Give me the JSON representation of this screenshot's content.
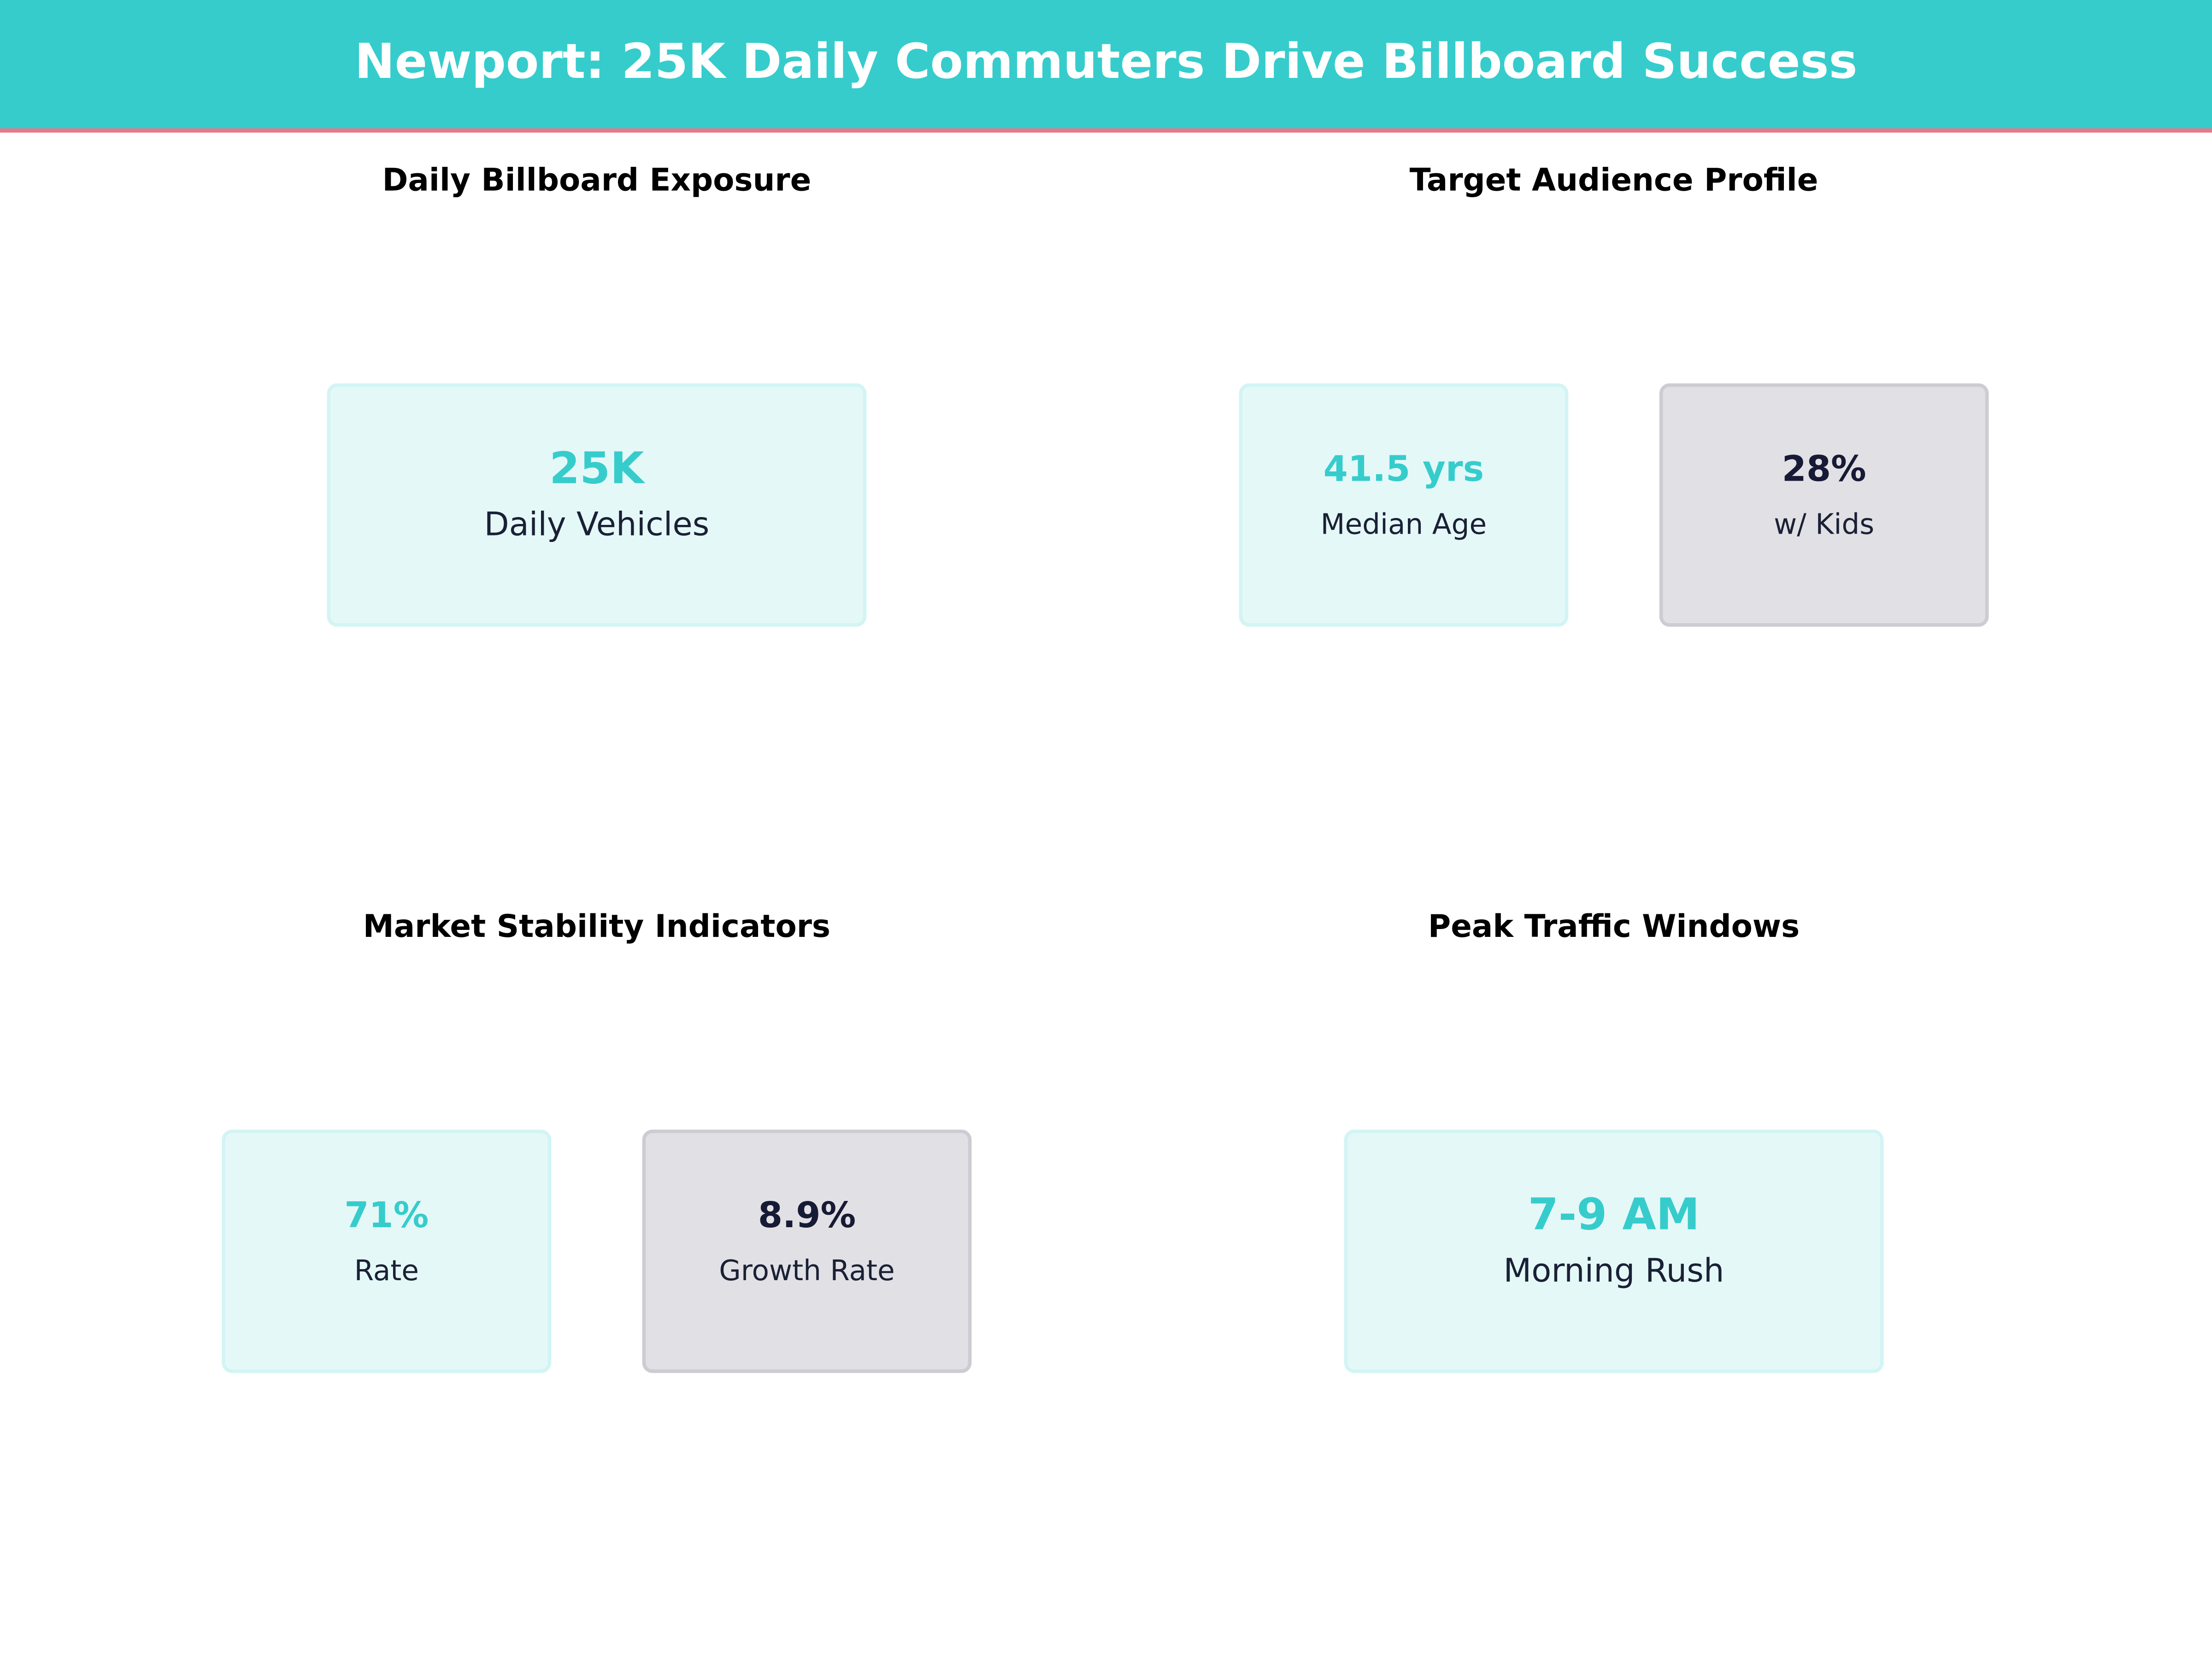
{
  "header": {
    "title": "Newport: 25K Daily Commuters Drive Billboard Success",
    "color": "#36CCCC"
  },
  "panels": [
    {
      "title": "Daily Billboard Exposure",
      "cards": [
        {
          "value": "25K",
          "label": "Daily Vehicles",
          "color": "#36CCCC"
        }
      ]
    },
    {
      "title": "Target Audience Profile",
      "cards": [
        {
          "value": "41.5 yrs",
          "label": "Median Age",
          "color": "#36CCCC"
        },
        {
          "value": "28%",
          "label": "w/ Kids",
          "color": "#161A35"
        }
      ]
    },
    {
      "title": "Market Stability Indicators",
      "cards": [
        {
          "value": "71%",
          "label": "Rate",
          "color": "#36CCCC"
        },
        {
          "value": "8.9%",
          "label": "Growth Rate",
          "color": "#161A35"
        }
      ]
    },
    {
      "title": "Peak Traffic Windows",
      "cards": [
        {
          "value": "7-9 AM",
          "label": "Morning Rush",
          "color": "#36CCCC"
        }
      ]
    }
  ]
}
